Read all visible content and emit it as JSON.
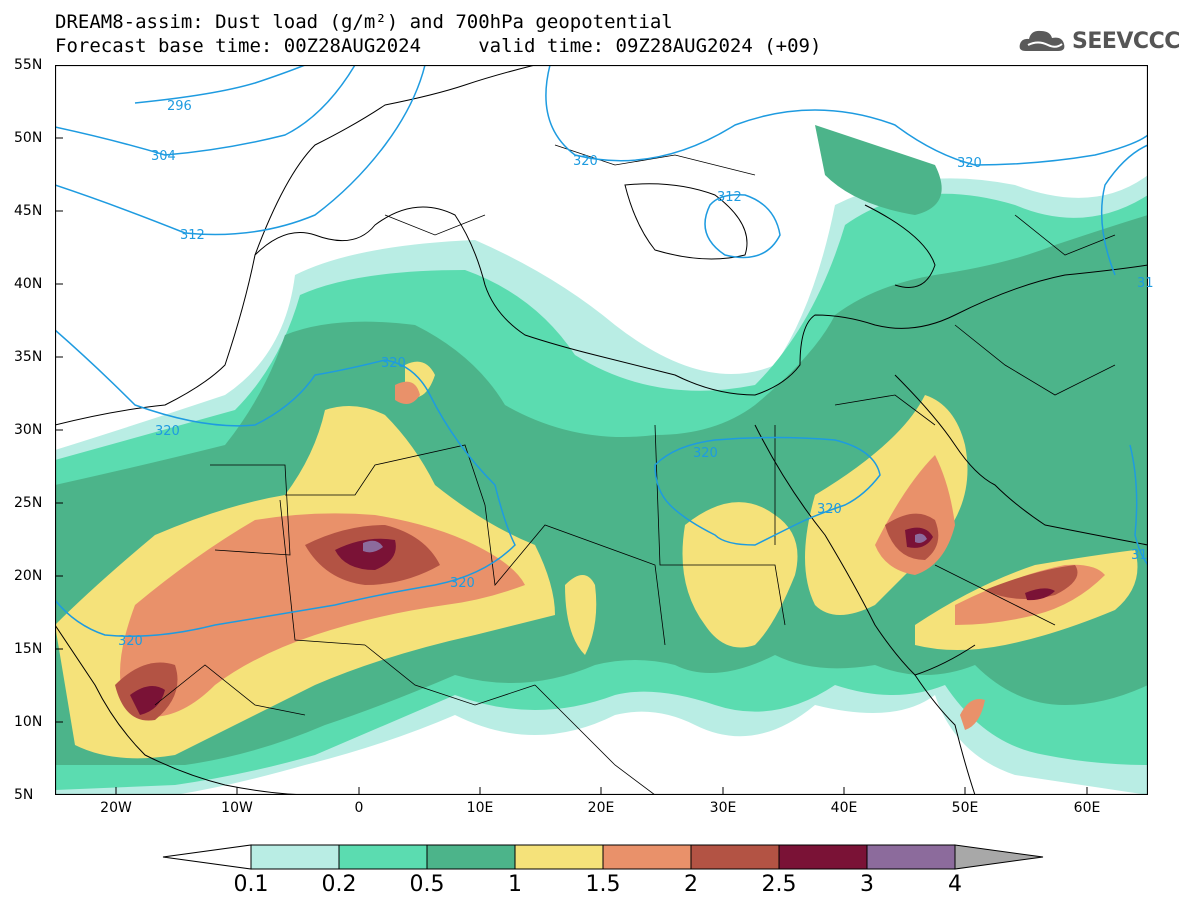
{
  "title": {
    "line1": "DREAM8-assim: Dust load (g/m²) and 700hPa geopotential",
    "line2": "Forecast base time: 00Z28AUG2024     valid time: 09Z28AUG2024 (+09)"
  },
  "logo": {
    "text": "SEEVCCC",
    "icon": "cloud-icon"
  },
  "map": {
    "lon_range": [
      -25,
      65
    ],
    "lat_range": [
      5,
      55
    ],
    "lat_ticks": [
      "55N",
      "50N",
      "45N",
      "40N",
      "35N",
      "30N",
      "25N",
      "20N",
      "15N",
      "10N",
      "5N"
    ],
    "lon_ticks": [
      "20W",
      "10W",
      "0",
      "10E",
      "20E",
      "30E",
      "40E",
      "50E",
      "60E"
    ],
    "contour_labels": [
      "296",
      "304",
      "312",
      "320",
      "320",
      "320",
      "320",
      "320",
      "320",
      "320",
      "312",
      "320",
      "31",
      "31"
    ],
    "contour_color": "#1e9be0"
  },
  "colorbar": {
    "levels": [
      "0.1",
      "0.2",
      "0.5",
      "1",
      "1.5",
      "2",
      "2.5",
      "3",
      "4"
    ],
    "colors": [
      "#ffffff",
      "#b9ede4",
      "#5bdcb0",
      "#4cb48a",
      "#f5e27a",
      "#e9916a",
      "#b35344",
      "#7a1236",
      "#8c6b9c",
      "#a8a8a8"
    ]
  }
}
